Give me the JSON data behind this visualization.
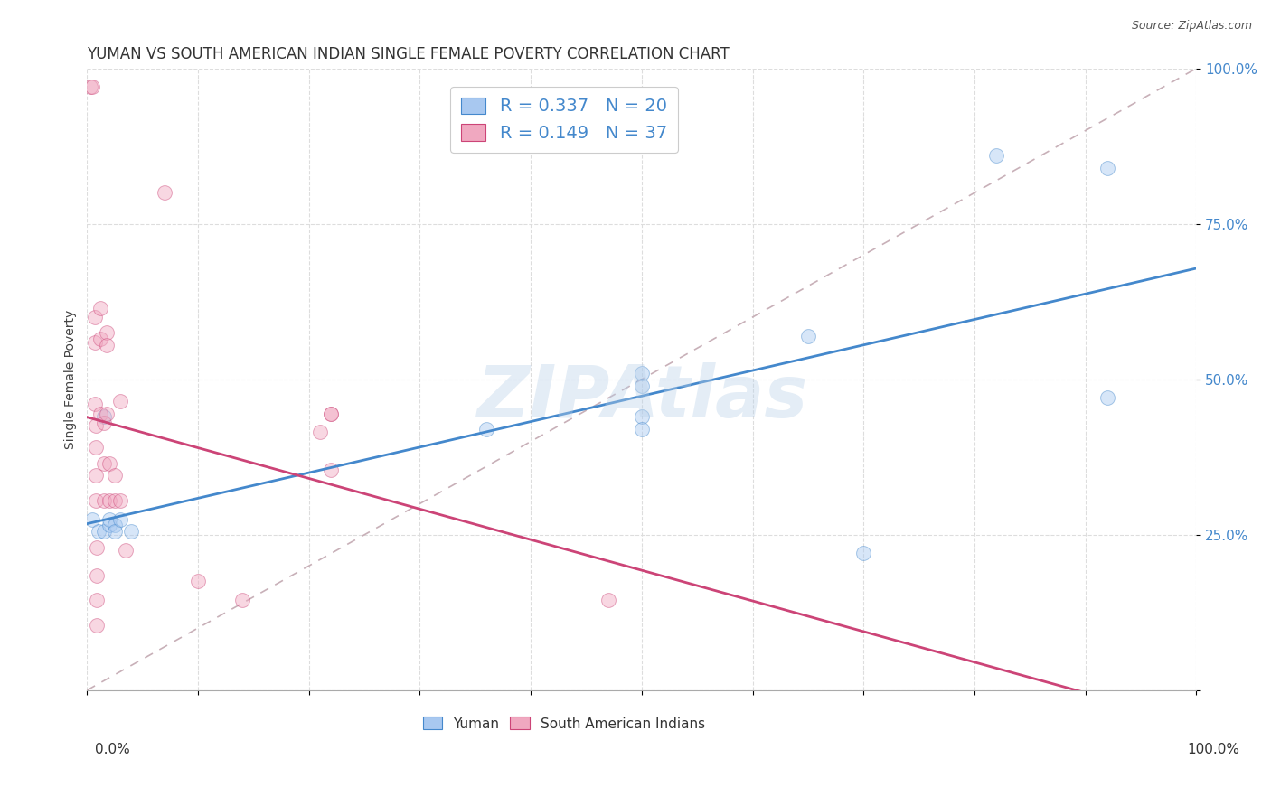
{
  "title": "YUMAN VS SOUTH AMERICAN INDIAN SINGLE FEMALE POVERTY CORRELATION CHART",
  "source": "Source: ZipAtlas.com",
  "ylabel": "Single Female Poverty",
  "legend_yuman": "R = 0.337   N = 20",
  "legend_sa": "R = 0.149   N = 37",
  "yuman_color": "#a8c8f0",
  "sa_color": "#f0a8c0",
  "yuman_line_color": "#4488cc",
  "sa_line_color": "#cc4477",
  "diagonal_color": "#c8b0b8",
  "watermark": "ZIPAtlas",
  "yuman_x": [
    0.005,
    0.01,
    0.015,
    0.015,
    0.02,
    0.02,
    0.025,
    0.025,
    0.03,
    0.04,
    0.36,
    0.5,
    0.5,
    0.5,
    0.5,
    0.65,
    0.7,
    0.82,
    0.92,
    0.92
  ],
  "yuman_y": [
    0.275,
    0.255,
    0.44,
    0.255,
    0.265,
    0.275,
    0.265,
    0.255,
    0.275,
    0.255,
    0.42,
    0.51,
    0.49,
    0.44,
    0.42,
    0.57,
    0.22,
    0.86,
    0.47,
    0.84
  ],
  "sa_x": [
    0.003,
    0.005,
    0.007,
    0.007,
    0.007,
    0.008,
    0.008,
    0.008,
    0.008,
    0.009,
    0.009,
    0.009,
    0.009,
    0.012,
    0.012,
    0.012,
    0.015,
    0.015,
    0.015,
    0.018,
    0.018,
    0.018,
    0.02,
    0.02,
    0.025,
    0.025,
    0.03,
    0.03,
    0.035,
    0.07,
    0.1,
    0.14,
    0.21,
    0.22,
    0.22,
    0.22,
    0.47
  ],
  "sa_y": [
    0.97,
    0.97,
    0.6,
    0.56,
    0.46,
    0.425,
    0.39,
    0.345,
    0.305,
    0.23,
    0.185,
    0.145,
    0.105,
    0.615,
    0.565,
    0.445,
    0.43,
    0.365,
    0.305,
    0.575,
    0.555,
    0.445,
    0.365,
    0.305,
    0.345,
    0.305,
    0.465,
    0.305,
    0.225,
    0.8,
    0.175,
    0.145,
    0.415,
    0.445,
    0.355,
    0.445,
    0.145
  ],
  "xlim": [
    0,
    1
  ],
  "ylim": [
    0,
    1
  ],
  "yticks": [
    0.0,
    0.25,
    0.5,
    0.75,
    1.0
  ],
  "ytick_labels": [
    "",
    "25.0%",
    "50.0%",
    "75.0%",
    "100.0%"
  ],
  "xtick_positions": [
    0.0,
    0.1,
    0.2,
    0.3,
    0.4,
    0.5,
    0.6,
    0.7,
    0.8,
    0.9,
    1.0
  ],
  "background_color": "#ffffff",
  "grid_color": "#dddddd",
  "marker_size": 130,
  "marker_alpha": 0.45,
  "title_fontsize": 12,
  "axis_label_fontsize": 10
}
